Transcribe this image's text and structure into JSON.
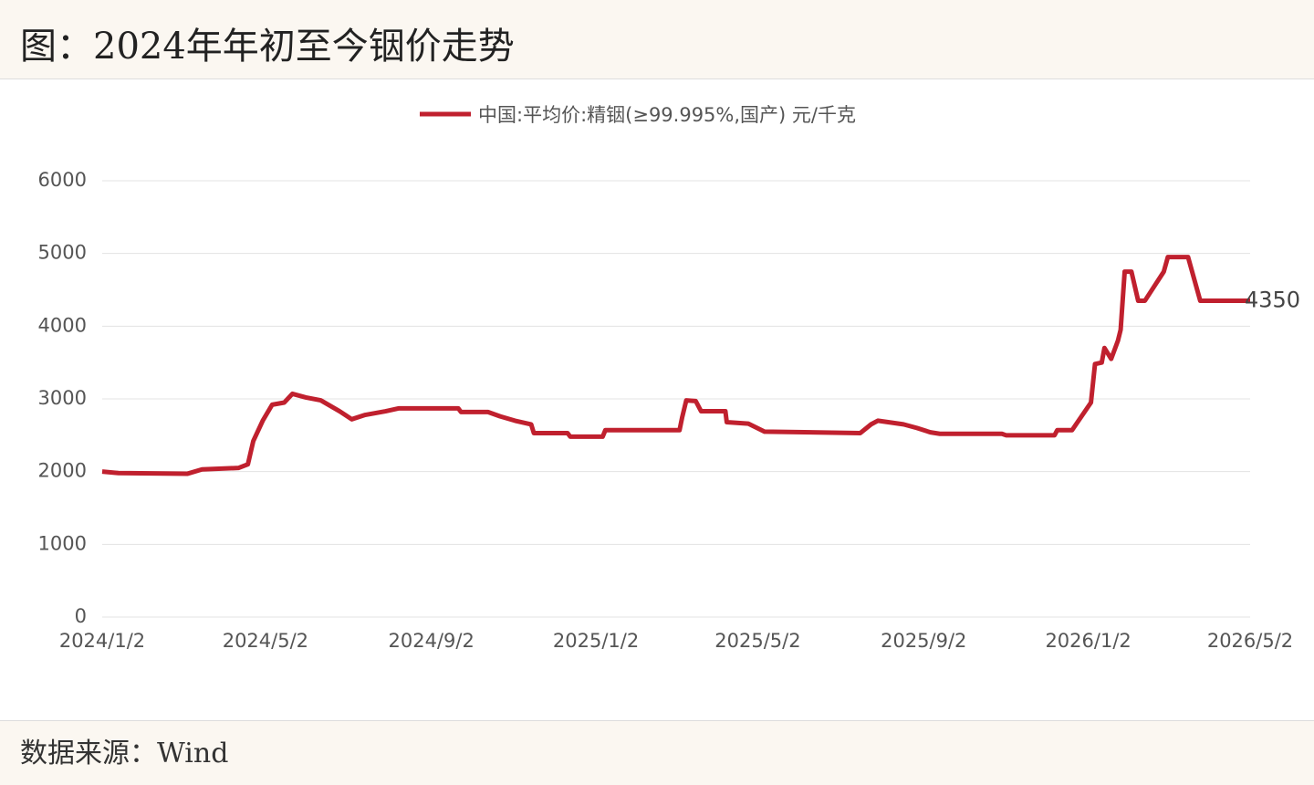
{
  "chart_data": {
    "type": "line",
    "title": "图：2024年年初至今铟价走势",
    "source": "数据来源：Wind",
    "x": [
      "2024/1/2",
      "2024/1/14",
      "2024/3/5",
      "2024/3/16",
      "2024/4/12",
      "2024/4/19",
      "2024/4/23",
      "2024/4/30",
      "2024/5/7",
      "2024/5/16",
      "2024/5/22",
      "2024/6/1",
      "2024/6/12",
      "2024/6/26",
      "2024/7/5",
      "2024/7/15",
      "2024/7/30",
      "2024/8/9",
      "2024/9/22",
      "2024/9/24",
      "2024/10/14",
      "2024/10/23",
      "2024/11/3",
      "2024/11/15",
      "2024/11/17",
      "2024/12/12",
      "2024/12/14",
      "2025/1/7",
      "2025/1/9",
      "2025/3/5",
      "2025/3/7",
      "2025/3/10",
      "2025/3/17",
      "2025/3/21",
      "2025/4/8",
      "2025/4/9",
      "2025/4/25",
      "2025/5/7",
      "2025/7/17",
      "2025/7/25",
      "2025/7/30",
      "2025/8/18",
      "2025/8/28",
      "2025/9/7",
      "2025/9/14",
      "2025/10/30",
      "2025/11/2",
      "2025/12/8",
      "2025/12/10",
      "2025/12/21",
      "2025/12/28",
      "2026/1/4",
      "2026/1/7",
      "2026/1/12",
      "2026/1/14",
      "2026/1/19",
      "2026/1/24",
      "2026/1/26",
      "2026/1/29",
      "2026/2/3",
      "2026/2/8",
      "2026/2/13",
      "2026/2/27",
      "2026/3/2",
      "2026/3/17",
      "2026/3/26",
      "2026/5/2"
    ],
    "series": [
      {
        "name": "中国:平均价:精铟(≥99.995%,国产) 元/千克",
        "color": "#c0202e",
        "values": [
          2000,
          1980,
          1970,
          2030,
          2050,
          2100,
          2420,
          2700,
          2920,
          2950,
          3070,
          3020,
          2980,
          2830,
          2720,
          2780,
          2830,
          2870,
          2870,
          2820,
          2820,
          2760,
          2700,
          2650,
          2530,
          2530,
          2480,
          2480,
          2570,
          2570,
          2750,
          2980,
          2970,
          2830,
          2830,
          2680,
          2660,
          2550,
          2530,
          2650,
          2700,
          2650,
          2600,
          2540,
          2520,
          2520,
          2500,
          2500,
          2570,
          2570,
          2760,
          2950,
          3480,
          3500,
          3700,
          3550,
          3800,
          3950,
          4750,
          4750,
          4350,
          4350,
          4750,
          4950,
          4950,
          4350,
          4350
        ]
      }
    ],
    "xlim": [
      "2024/1/2",
      "2026/5/2"
    ],
    "xticks": [
      "2024/1/2",
      "2024/5/2",
      "2024/9/2",
      "2025/1/2",
      "2025/5/2",
      "2025/9/2",
      "2026/1/2",
      "2026/5/2"
    ],
    "ylim": [
      0,
      6000
    ],
    "yticks": [
      0,
      1000,
      2000,
      3000,
      4000,
      5000,
      6000
    ],
    "grid": true
  }
}
